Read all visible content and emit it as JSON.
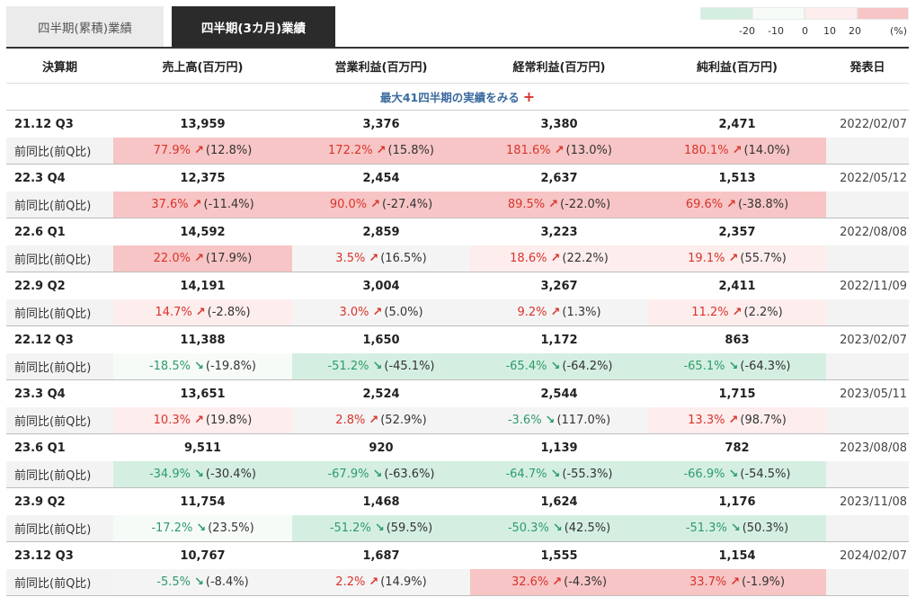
{
  "tabs": [
    {
      "label": "四半期(累積)業績",
      "active": false
    },
    {
      "label": "四半期(3カ月)業績",
      "active": true
    }
  ],
  "legend": {
    "colors": [
      "#d4efe2",
      "#f6fbf8",
      "#ffffff",
      "#fdeded",
      "#f7c5c5"
    ],
    "ticks": [
      "-20",
      "-10",
      "0",
      "10",
      "20"
    ],
    "unit": "(%)"
  },
  "table": {
    "headers": [
      "決算期",
      "売上高(百万円)",
      "営業利益(百万円)",
      "経常利益(百万円)",
      "純利益(百万円)",
      "発表日"
    ],
    "expand_label": "最大41四半期の実績をみる",
    "expand_icon": "plus-icon",
    "change_label": "前同比(前Q比)",
    "rows": [
      {
        "period": "21.12 Q3",
        "values": [
          "13,959",
          "3,376",
          "3,380",
          "2,471"
        ],
        "date": "2022/02/07",
        "changes": [
          {
            "pct": "77.9%",
            "dir": "up",
            "qoq": "(12.8%)",
            "bg": "#f7c5c5"
          },
          {
            "pct": "172.2%",
            "dir": "up",
            "qoq": "(15.8%)",
            "bg": "#f7c5c5"
          },
          {
            "pct": "181.6%",
            "dir": "up",
            "qoq": "(13.0%)",
            "bg": "#f7c5c5"
          },
          {
            "pct": "180.1%",
            "dir": "up",
            "qoq": "(14.0%)",
            "bg": "#f7c5c5"
          }
        ]
      },
      {
        "period": "22.3 Q4",
        "values": [
          "12,375",
          "2,454",
          "2,637",
          "1,513"
        ],
        "date": "2022/05/12",
        "changes": [
          {
            "pct": "37.6%",
            "dir": "up",
            "qoq": "(-11.4%)",
            "bg": "#f7c5c5"
          },
          {
            "pct": "90.0%",
            "dir": "up",
            "qoq": "(-27.4%)",
            "bg": "#f7c5c5"
          },
          {
            "pct": "89.5%",
            "dir": "up",
            "qoq": "(-22.0%)",
            "bg": "#f7c5c5"
          },
          {
            "pct": "69.6%",
            "dir": "up",
            "qoq": "(-38.8%)",
            "bg": "#f7c5c5"
          }
        ]
      },
      {
        "period": "22.6 Q1",
        "values": [
          "14,592",
          "2,859",
          "3,223",
          "2,357"
        ],
        "date": "2022/08/08",
        "changes": [
          {
            "pct": "22.0%",
            "dir": "up",
            "qoq": "(17.9%)",
            "bg": "#f7c5c5"
          },
          {
            "pct": "3.5%",
            "dir": "up",
            "qoq": "(16.5%)",
            "bg": "#f4f4f4"
          },
          {
            "pct": "18.6%",
            "dir": "up",
            "qoq": "(22.2%)",
            "bg": "#fdeded"
          },
          {
            "pct": "19.1%",
            "dir": "up",
            "qoq": "(55.7%)",
            "bg": "#fdeded"
          }
        ]
      },
      {
        "period": "22.9 Q2",
        "values": [
          "14,191",
          "3,004",
          "3,267",
          "2,411"
        ],
        "date": "2022/11/09",
        "changes": [
          {
            "pct": "14.7%",
            "dir": "up",
            "qoq": "(-2.8%)",
            "bg": "#fdeded"
          },
          {
            "pct": "3.0%",
            "dir": "up",
            "qoq": "(5.0%)",
            "bg": "#f4f4f4"
          },
          {
            "pct": "9.2%",
            "dir": "up",
            "qoq": "(1.3%)",
            "bg": "#f4f4f4"
          },
          {
            "pct": "11.2%",
            "dir": "up",
            "qoq": "(2.2%)",
            "bg": "#fdeded"
          }
        ]
      },
      {
        "period": "22.12 Q3",
        "values": [
          "11,388",
          "1,650",
          "1,172",
          "863"
        ],
        "date": "2023/02/07",
        "changes": [
          {
            "pct": "-18.5%",
            "dir": "down",
            "qoq": "(-19.8%)",
            "bg": "#f6fbf8"
          },
          {
            "pct": "-51.2%",
            "dir": "down",
            "qoq": "(-45.1%)",
            "bg": "#d4efe2"
          },
          {
            "pct": "-65.4%",
            "dir": "down",
            "qoq": "(-64.2%)",
            "bg": "#d4efe2"
          },
          {
            "pct": "-65.1%",
            "dir": "down",
            "qoq": "(-64.3%)",
            "bg": "#d4efe2"
          }
        ]
      },
      {
        "period": "23.3 Q4",
        "values": [
          "13,651",
          "2,524",
          "2,544",
          "1,715"
        ],
        "date": "2023/05/11",
        "changes": [
          {
            "pct": "10.3%",
            "dir": "up",
            "qoq": "(19.8%)",
            "bg": "#fdeded"
          },
          {
            "pct": "2.8%",
            "dir": "up",
            "qoq": "(52.9%)",
            "bg": "#f4f4f4"
          },
          {
            "pct": "-3.6%",
            "dir": "down",
            "qoq": "(117.0%)",
            "bg": "#f4f4f4"
          },
          {
            "pct": "13.3%",
            "dir": "up",
            "qoq": "(98.7%)",
            "bg": "#fdeded"
          }
        ]
      },
      {
        "period": "23.6 Q1",
        "values": [
          "9,511",
          "920",
          "1,139",
          "782"
        ],
        "date": "2023/08/08",
        "changes": [
          {
            "pct": "-34.9%",
            "dir": "down",
            "qoq": "(-30.4%)",
            "bg": "#d4efe2"
          },
          {
            "pct": "-67.9%",
            "dir": "down",
            "qoq": "(-63.6%)",
            "bg": "#d4efe2"
          },
          {
            "pct": "-64.7%",
            "dir": "down",
            "qoq": "(-55.3%)",
            "bg": "#d4efe2"
          },
          {
            "pct": "-66.9%",
            "dir": "down",
            "qoq": "(-54.5%)",
            "bg": "#d4efe2"
          }
        ]
      },
      {
        "period": "23.9 Q2",
        "values": [
          "11,754",
          "1,468",
          "1,624",
          "1,176"
        ],
        "date": "2023/11/08",
        "changes": [
          {
            "pct": "-17.2%",
            "dir": "down",
            "qoq": "(23.5%)",
            "bg": "#f6fbf8"
          },
          {
            "pct": "-51.2%",
            "dir": "down",
            "qoq": "(59.5%)",
            "bg": "#d4efe2"
          },
          {
            "pct": "-50.3%",
            "dir": "down",
            "qoq": "(42.5%)",
            "bg": "#d4efe2"
          },
          {
            "pct": "-51.3%",
            "dir": "down",
            "qoq": "(50.3%)",
            "bg": "#d4efe2"
          }
        ]
      },
      {
        "period": "23.12 Q3",
        "values": [
          "10,767",
          "1,687",
          "1,555",
          "1,154"
        ],
        "date": "2024/02/07",
        "changes": [
          {
            "pct": "-5.5%",
            "dir": "down",
            "qoq": "(-8.4%)",
            "bg": "#f4f4f4"
          },
          {
            "pct": "2.2%",
            "dir": "up",
            "qoq": "(14.9%)",
            "bg": "#f4f4f4"
          },
          {
            "pct": "32.6%",
            "dir": "up",
            "qoq": "(-4.3%)",
            "bg": "#f7c5c5"
          },
          {
            "pct": "33.7%",
            "dir": "up",
            "qoq": "(-1.9%)",
            "bg": "#f7c5c5"
          }
        ]
      }
    ]
  }
}
